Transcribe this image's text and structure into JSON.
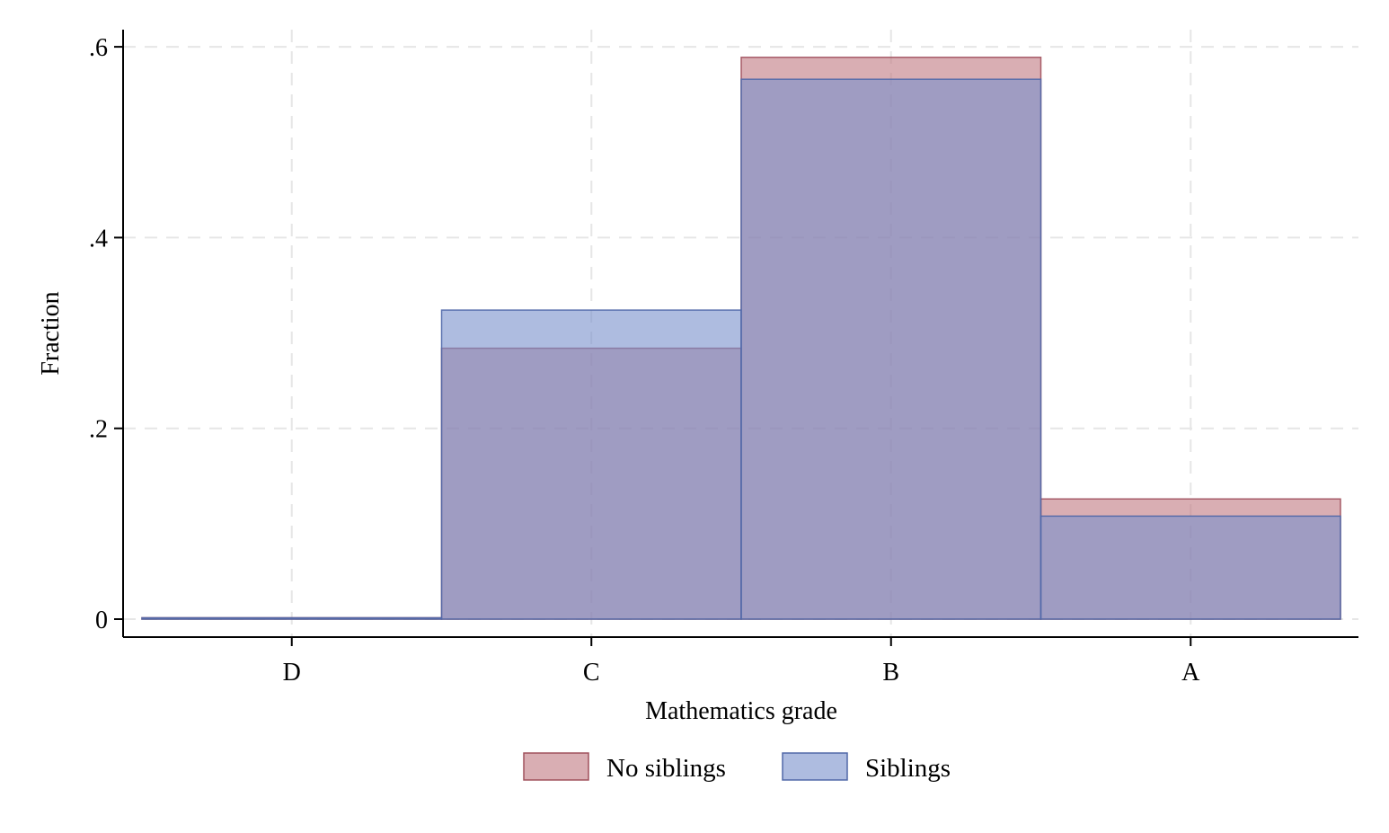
{
  "chart_data": {
    "type": "bar",
    "subtype": "overlaid-histogram",
    "title": "",
    "xlabel": "Mathematics grade",
    "ylabel": "Fraction",
    "categories": [
      "D",
      "C",
      "B",
      "A"
    ],
    "ylim": [
      0,
      0.62
    ],
    "yticks": [
      0,
      0.2,
      0.4,
      0.6
    ],
    "ytick_labels": [
      "0",
      ".2",
      ".4",
      ".6"
    ],
    "grid": true,
    "legend_position": "bottom",
    "series": [
      {
        "name": "No siblings",
        "values": [
          0.001,
          0.284,
          0.589,
          0.126
        ],
        "fill": "#c07880",
        "stroke": "#a0505c"
      },
      {
        "name": "Siblings",
        "values": [
          0.001,
          0.324,
          0.566,
          0.108
        ],
        "fill": "#7890cc",
        "stroke": "#5068a8"
      }
    ]
  }
}
